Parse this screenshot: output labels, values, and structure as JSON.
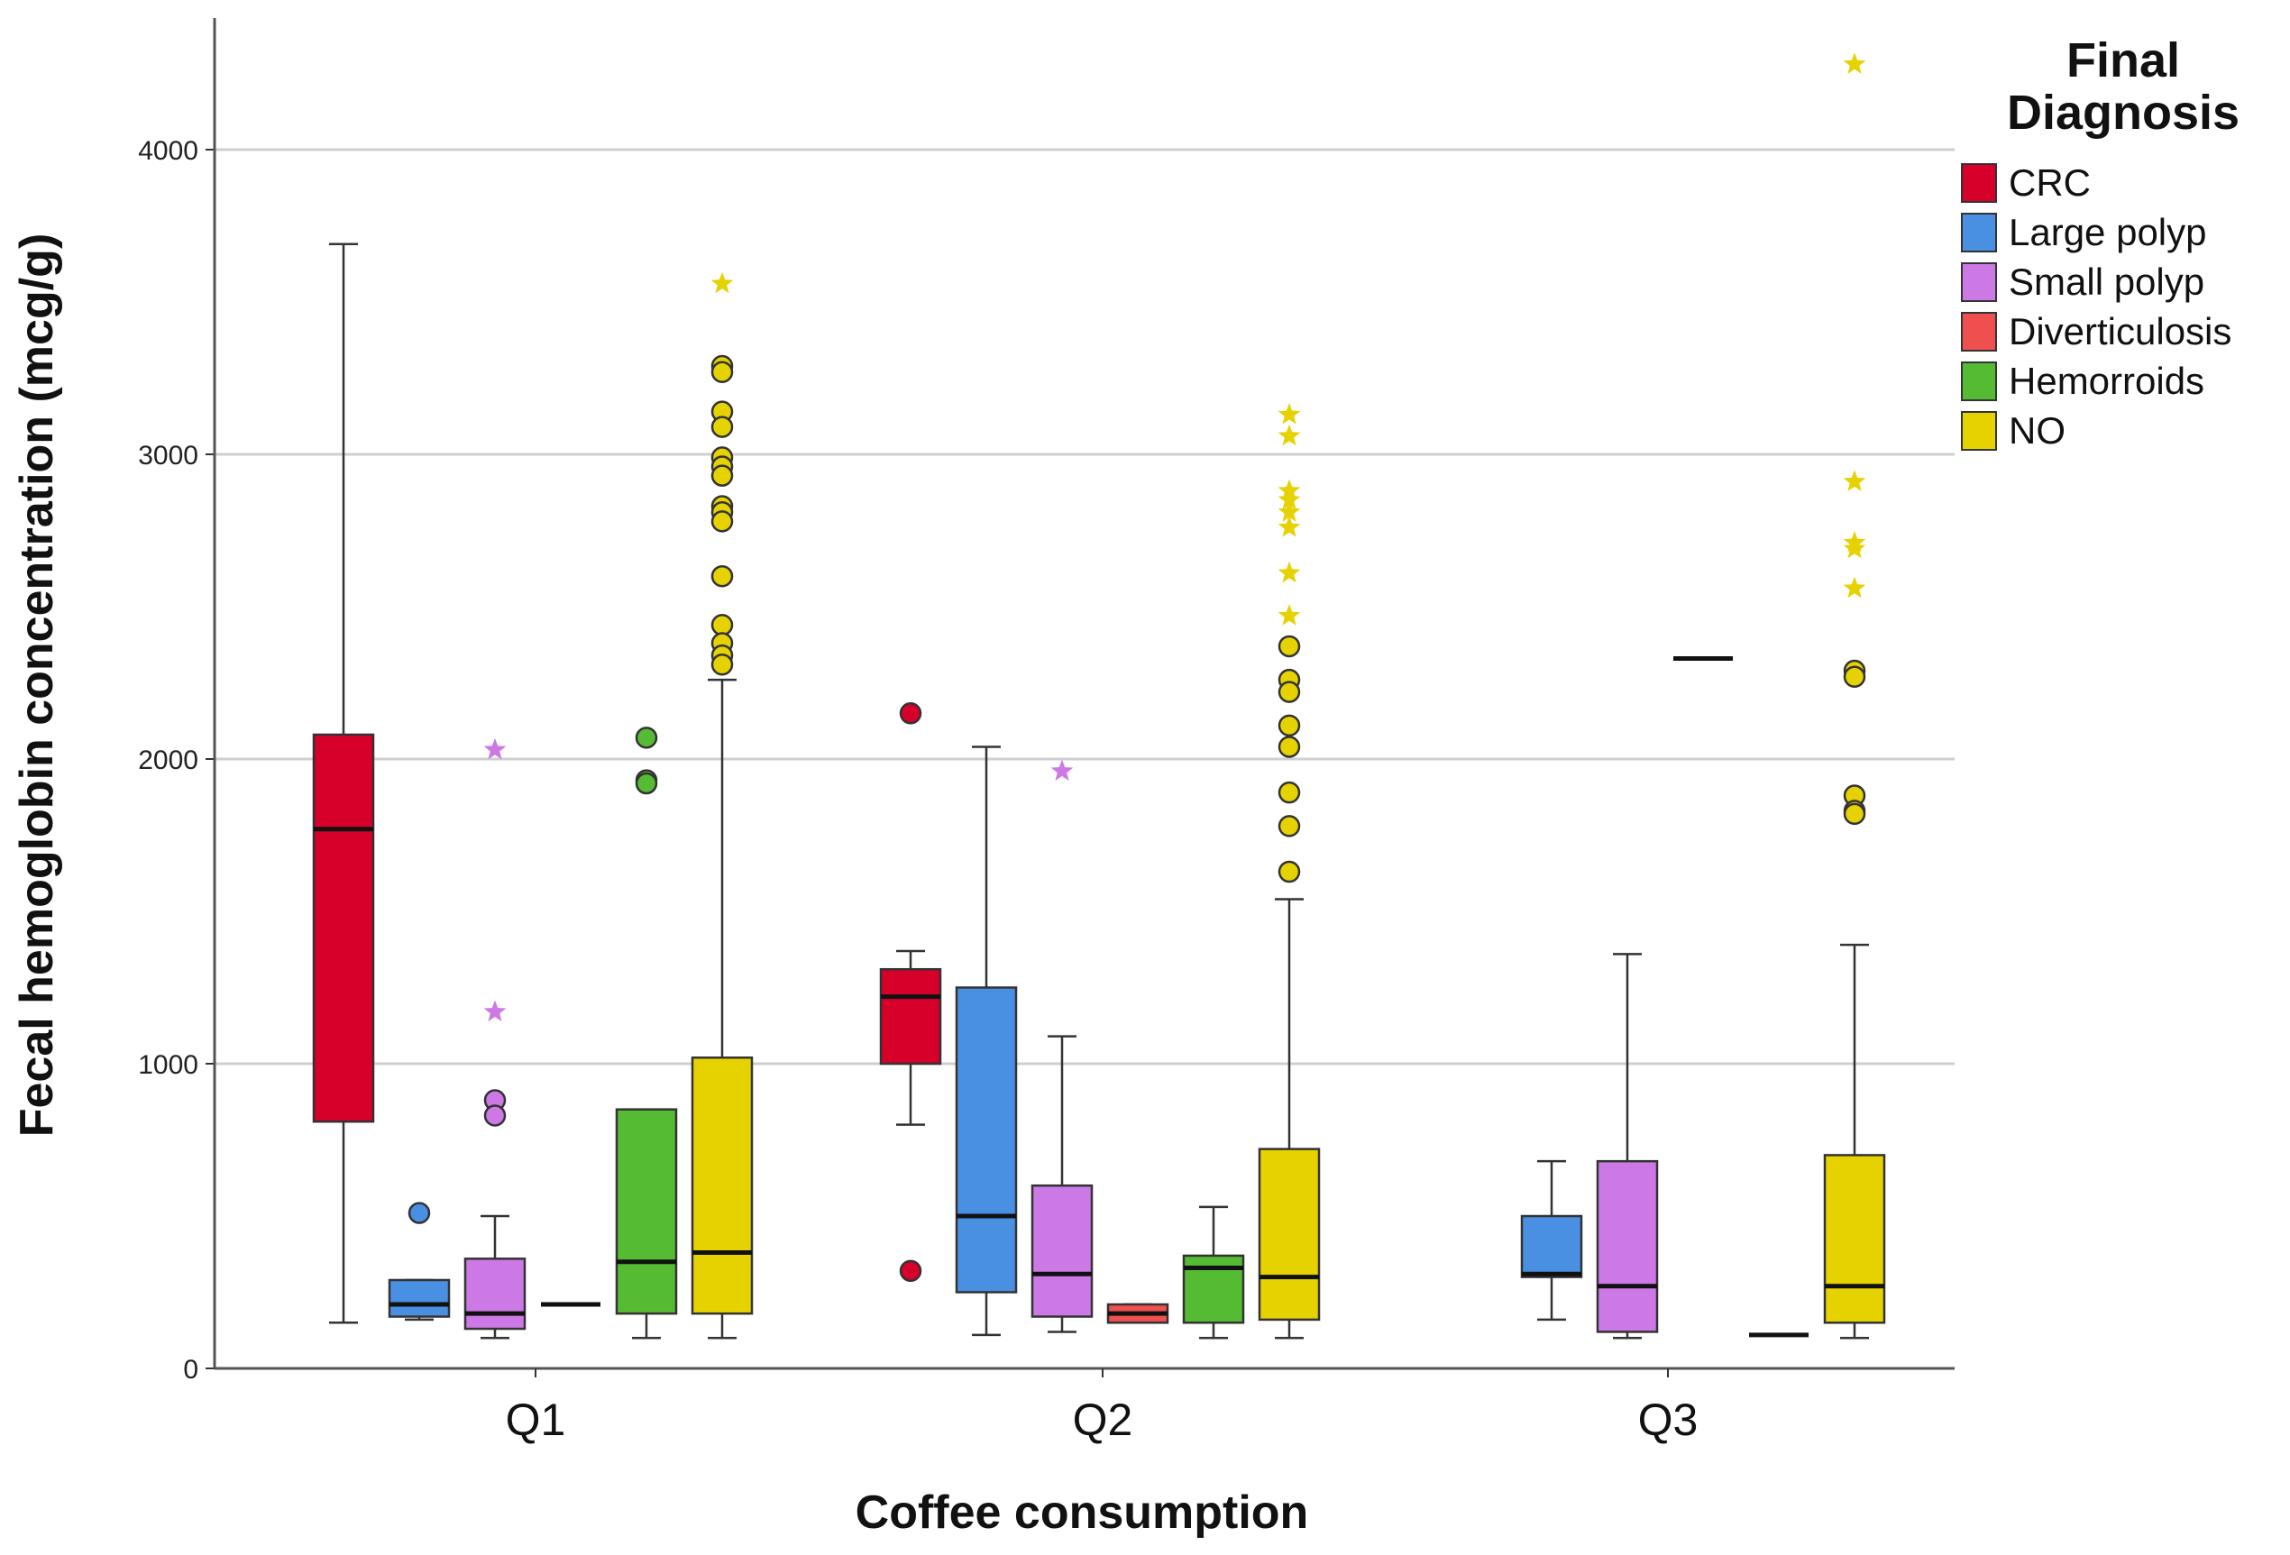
{
  "chart_data": {
    "type": "box",
    "xlabel": "Coffee consumption",
    "ylabel": "Fecal hemoglobin concentration (mcg/g)",
    "ylim": [
      0,
      4400
    ],
    "yticks": [
      0,
      1000,
      2000,
      3000,
      4000
    ],
    "grid": true,
    "categories": [
      "Q1",
      "Q2",
      "Q3"
    ],
    "legend": {
      "title_line1": "Final",
      "title_line2": "Diagnosis",
      "position": "right",
      "items": [
        {
          "name": "CRC",
          "color": "#d6002b"
        },
        {
          "name": "Large polyp",
          "color": "#4a90e2"
        },
        {
          "name": "Small polyp",
          "color": "#cc79e6"
        },
        {
          "name": "Diverticulosis",
          "color": "#ef4f4f"
        },
        {
          "name": "Hemorroids",
          "color": "#55bb33"
        },
        {
          "name": "NO",
          "color": "#e6d200"
        }
      ]
    },
    "series": [
      {
        "name": "CRC",
        "boxes": [
          {
            "category": "Q1",
            "min": 150,
            "q1": 810,
            "median": 1770,
            "q3": 2080,
            "max": 3690,
            "outliers": [],
            "extremes": []
          },
          {
            "category": "Q2",
            "min": 800,
            "q1": 1000,
            "median": 1220,
            "q3": 1310,
            "max": 1370,
            "outliers": [
              2150,
              320
            ],
            "extremes": []
          },
          null
        ]
      },
      {
        "name": "Large polyp",
        "boxes": [
          {
            "category": "Q1",
            "min": 160,
            "q1": 170,
            "median": 210,
            "q3": 290,
            "max": 290,
            "outliers": [
              510
            ],
            "extremes": []
          },
          {
            "category": "Q2",
            "min": 110,
            "q1": 250,
            "median": 500,
            "q3": 1250,
            "max": 2040,
            "outliers": [],
            "extremes": []
          },
          {
            "category": "Q3",
            "min": 160,
            "q1": 300,
            "median": 310,
            "q3": 500,
            "max": 680,
            "outliers": [],
            "extremes": []
          }
        ]
      },
      {
        "name": "Small polyp",
        "boxes": [
          {
            "category": "Q1",
            "min": 100,
            "q1": 130,
            "median": 180,
            "q3": 360,
            "max": 500,
            "outliers": [
              880,
              830
            ],
            "extremes": [
              2030,
              1170
            ]
          },
          {
            "category": "Q2",
            "min": 120,
            "q1": 170,
            "median": 310,
            "q3": 600,
            "max": 1090,
            "outliers": [],
            "extremes": [
              1960
            ]
          },
          {
            "category": "Q3",
            "min": 100,
            "q1": 120,
            "median": 270,
            "q3": 680,
            "max": 1360,
            "outliers": [],
            "extremes": []
          }
        ]
      },
      {
        "name": "Diverticulosis",
        "boxes": [
          {
            "category": "Q1",
            "min": 210,
            "q1": 210,
            "median": 210,
            "q3": 210,
            "max": 210,
            "outliers": [],
            "extremes": []
          },
          {
            "category": "Q2",
            "min": 150,
            "q1": 150,
            "median": 180,
            "q3": 210,
            "max": 210,
            "outliers": [],
            "extremes": []
          },
          {
            "category": "Q3",
            "min": 2330,
            "q1": 2330,
            "median": 2330,
            "q3": 2330,
            "max": 2330,
            "outliers": [],
            "extremes": []
          }
        ]
      },
      {
        "name": "Hemorroids",
        "boxes": [
          {
            "category": "Q1",
            "min": 100,
            "q1": 180,
            "median": 350,
            "q3": 850,
            "max": 850,
            "outliers": [
              2070,
              1930,
              1920
            ],
            "extremes": []
          },
          {
            "category": "Q2",
            "min": 100,
            "q1": 150,
            "median": 330,
            "q3": 370,
            "max": 530,
            "outliers": [],
            "extremes": []
          },
          {
            "category": "Q3",
            "min": 110,
            "q1": 110,
            "median": 110,
            "q3": 110,
            "max": 110,
            "outliers": [],
            "extremes": []
          }
        ]
      },
      {
        "name": "NO",
        "boxes": [
          {
            "category": "Q1",
            "min": 100,
            "q1": 180,
            "median": 380,
            "q3": 1020,
            "max": 2260,
            "outliers": [
              3290,
              3270,
              3140,
              3090,
              2990,
              2960,
              2930,
              2830,
              2810,
              2780,
              2600,
              2440,
              2380,
              2340,
              2310
            ],
            "extremes": [
              3560
            ]
          },
          {
            "category": "Q2",
            "min": 100,
            "q1": 160,
            "median": 300,
            "q3": 720,
            "max": 1540,
            "outliers": [
              2370,
              2260,
              2220,
              2110,
              2040,
              1890,
              1780,
              1630
            ],
            "extremes": [
              3130,
              3060,
              2880,
              2850,
              2810,
              2760,
              2610,
              2470
            ]
          },
          {
            "category": "Q3",
            "min": 100,
            "q1": 150,
            "median": 270,
            "q3": 700,
            "max": 1390,
            "outliers": [
              2290,
              2270,
              1880,
              1830,
              1820
            ],
            "extremes": [
              4280,
              2910,
              2710,
              2690,
              2560
            ]
          }
        ]
      }
    ]
  }
}
